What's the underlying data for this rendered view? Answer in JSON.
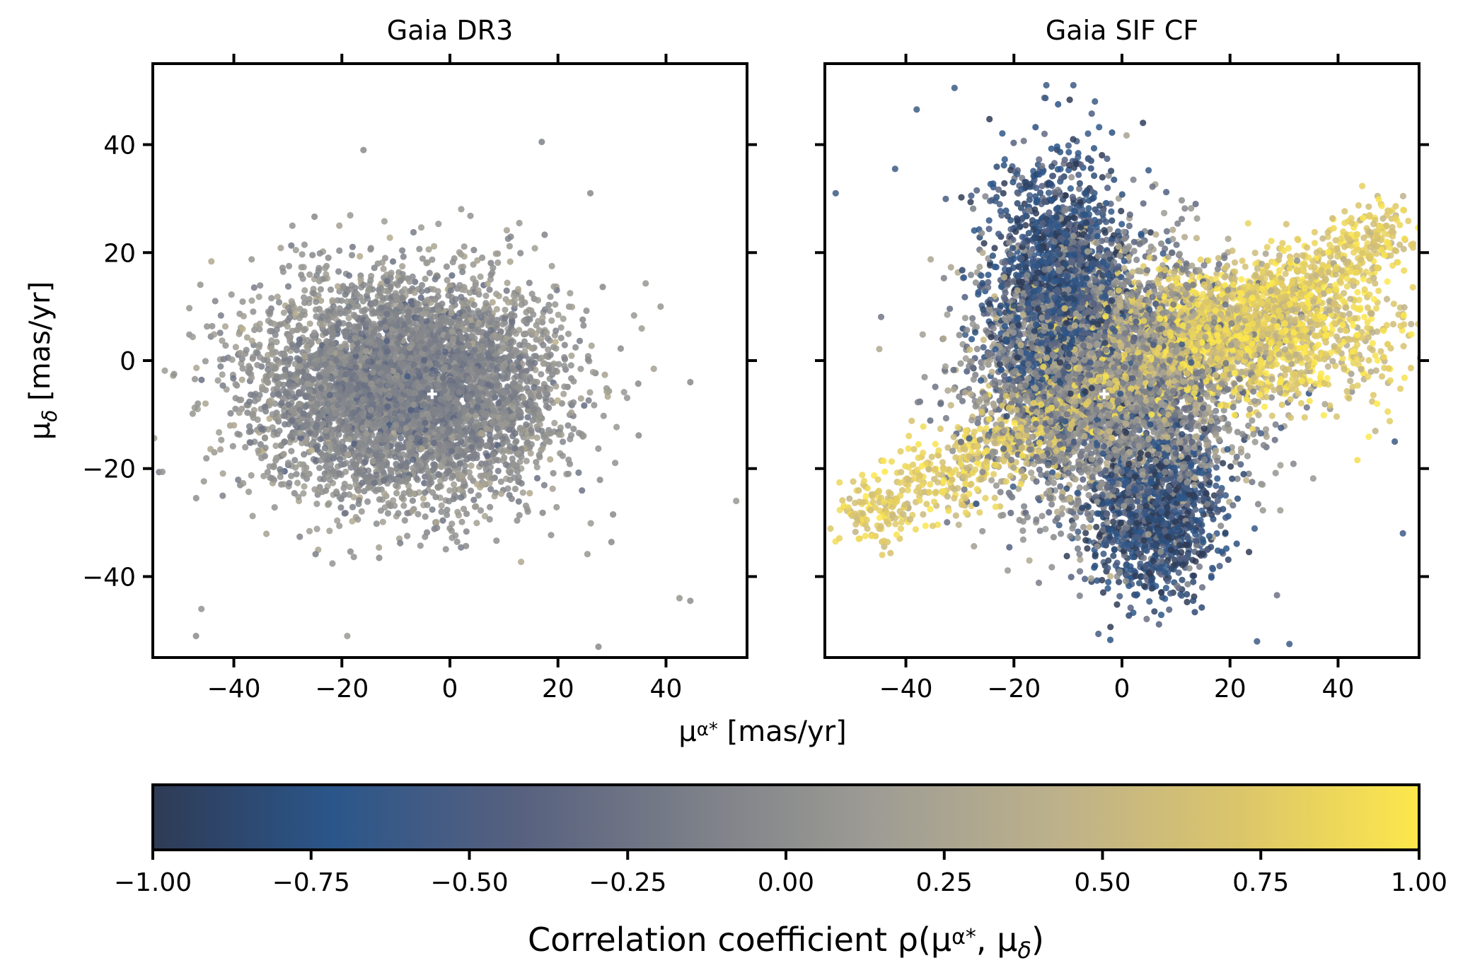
{
  "chart_data": [
    {
      "type": "scatter",
      "title": "Gaia DR3",
      "xlim": [
        -55,
        55
      ],
      "ylim": [
        -55,
        55
      ],
      "xticks": [
        -40,
        -20,
        0,
        20,
        40
      ],
      "yticks": [
        -40,
        -20,
        0,
        20,
        40
      ],
      "xtick_labels": [
        "−40",
        "−20",
        "0",
        "20",
        "40"
      ],
      "ytick_labels": [
        "−40",
        "−20",
        "0",
        "20",
        "40"
      ],
      "ylabel_base": "μ",
      "ylabel_sub": "δ",
      "ylabel_unit": " [mas/yr]",
      "marker": {
        "x": -3.3,
        "y": -6.2,
        "color": "#ffffff"
      },
      "distribution": {
        "n_points": 5500,
        "center": [
          -8,
          -5
        ],
        "sigma": [
          14,
          10
        ],
        "correlation": 0.0,
        "color_value_mean": 0.0,
        "color_value_spread": 0.12,
        "outliers": [
          [
            17,
            40.5
          ],
          [
            -16,
            39
          ],
          [
            26,
            31
          ],
          [
            39,
            10
          ],
          [
            44.5,
            -4
          ],
          [
            53,
            -26
          ],
          [
            44.5,
            -44.5
          ],
          [
            42.5,
            -44
          ],
          [
            27.5,
            -53
          ],
          [
            -19,
            -51
          ],
          [
            -47,
            -51
          ],
          [
            -46,
            -46
          ]
        ]
      }
    },
    {
      "type": "scatter",
      "title": "Gaia SIF CF",
      "xlim": [
        -55,
        55
      ],
      "ylim": [
        -55,
        55
      ],
      "xticks": [
        -40,
        -20,
        0,
        20,
        40
      ],
      "yticks": [
        -40,
        -20,
        0,
        20,
        40
      ],
      "xtick_labels": [
        "−40",
        "−20",
        "0",
        "20",
        "40"
      ],
      "marker": {
        "x": -3.3,
        "y": -6.2,
        "color": "#ffffff"
      },
      "distribution": {
        "n_points": 9000,
        "center": [
          -3,
          -5
        ],
        "sigma": [
          17,
          15
        ],
        "components": [
          {
            "weight": 0.45,
            "center": [
              -2,
              -4
            ],
            "sigma": [
              12,
              12
            ],
            "rho_mean": 0.0
          },
          {
            "weight": 0.22,
            "center": [
              -12,
              12
            ],
            "sigma": [
              6,
              12
            ],
            "rho_mean": -0.7
          },
          {
            "weight": 0.13,
            "center": [
              6,
              -28
            ],
            "sigma": [
              6,
              8
            ],
            "rho_mean": -0.75
          },
          {
            "weight": 0.2,
            "center": [
              22,
              5
            ],
            "sigma": [
              14,
              6
            ],
            "rho_mean": 0.75
          }
        ],
        "yellow_arm": {
          "from": [
            -50,
            -30
          ],
          "to": [
            52,
            25
          ],
          "weight": 0.15
        },
        "outliers": [
          [
            -9,
            51
          ],
          [
            -14,
            51
          ],
          [
            -5,
            48
          ],
          [
            -31,
            50.5
          ],
          [
            -38,
            46.5
          ],
          [
            -53,
            31
          ],
          [
            -42,
            35.5
          ],
          [
            31,
            -52.5
          ],
          [
            25,
            -52
          ],
          [
            52,
            -32
          ],
          [
            50.5,
            -15
          ],
          [
            52,
            8
          ]
        ]
      }
    }
  ],
  "shared": {
    "xlabel_base": "μ",
    "xlabel_sub": "α*",
    "xlabel_unit": " [mas/yr]"
  },
  "colorbar": {
    "colormap": "cividis",
    "vmin": -1.0,
    "vmax": 1.0,
    "ticks": [
      -1.0,
      -0.75,
      -0.5,
      -0.25,
      0.0,
      0.25,
      0.5,
      0.75,
      1.0
    ],
    "tick_labels": [
      "−1.00",
      "−0.75",
      "−0.50",
      "−0.25",
      "0.00",
      "0.25",
      "0.50",
      "0.75",
      "1.00"
    ],
    "label_prefix": "Correlation coefficient ρ(μ",
    "label_sub1": "α*",
    "label_mid": ", μ",
    "label_sub2": "δ",
    "label_suffix": ")",
    "stops": [
      "#2f3b55",
      "#2b568a",
      "#56607f",
      "#7b7f88",
      "#9e9c94",
      "#bdb18b",
      "#dbc56b",
      "#fde74b"
    ]
  },
  "colors": {
    "axes": "#000000",
    "background": "#ffffff"
  }
}
